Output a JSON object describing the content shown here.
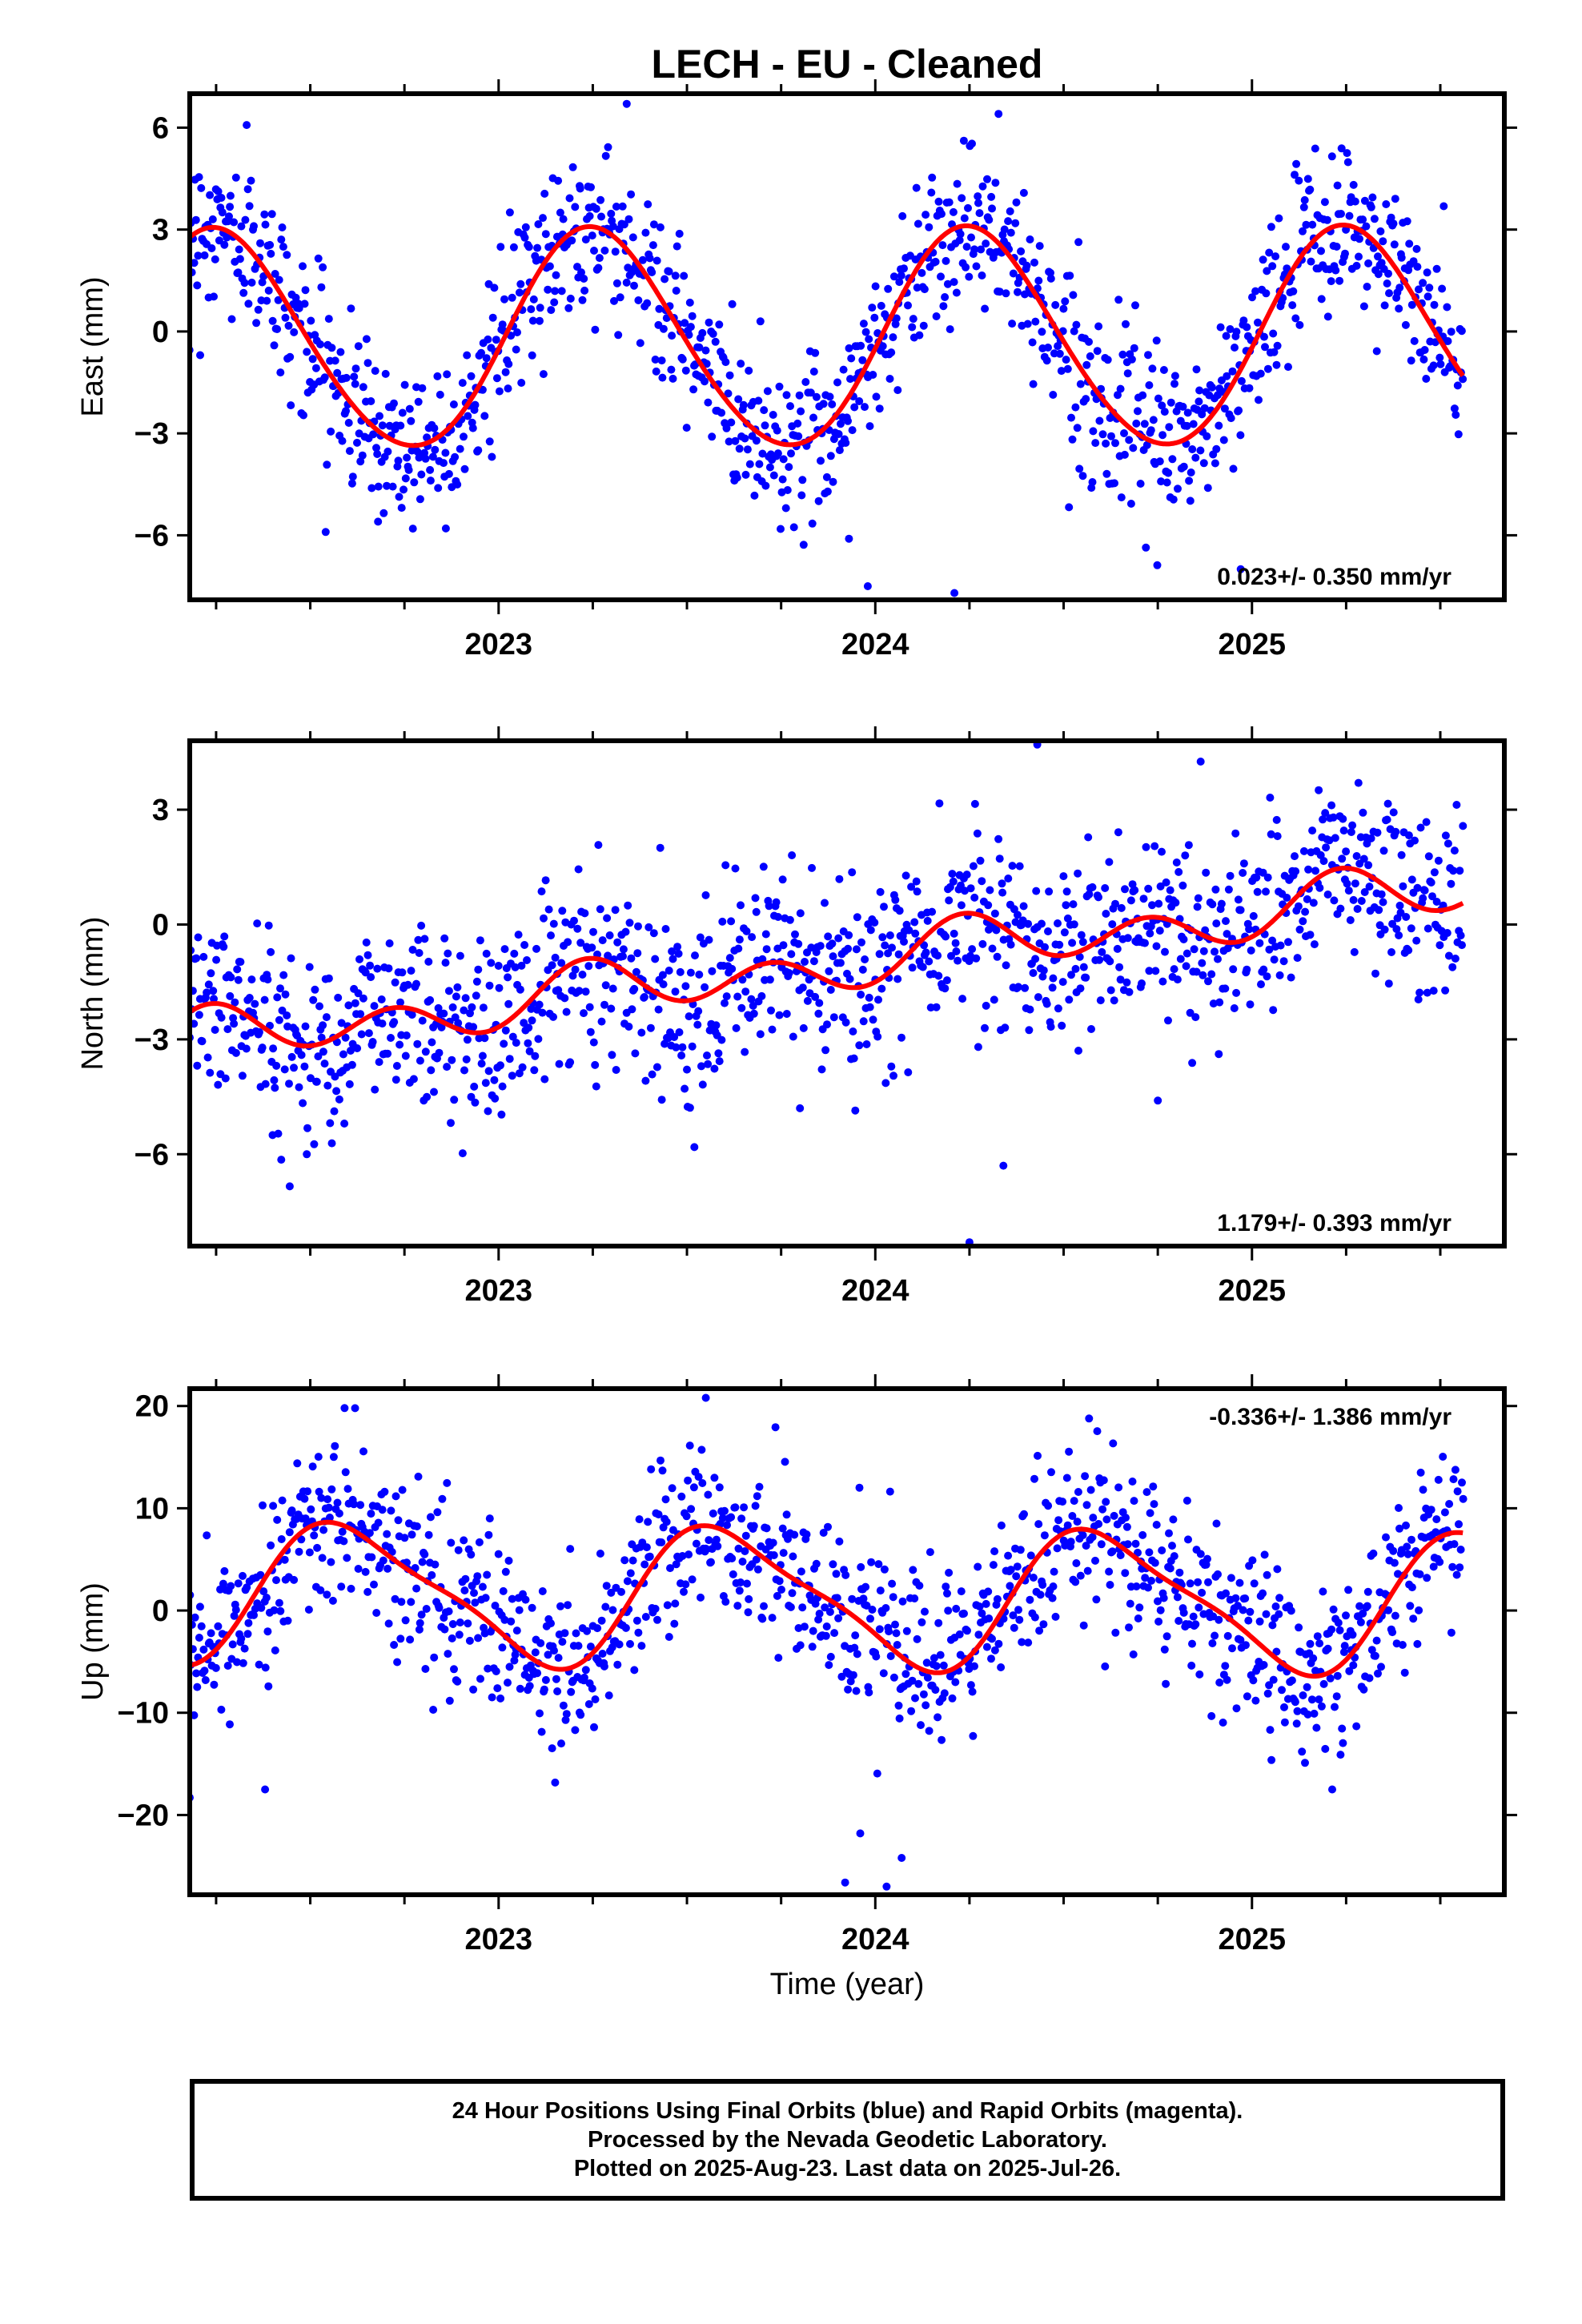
{
  "title": "LECH  - EU - Cleaned",
  "xlabel": "Time (year)",
  "footer": {
    "line1": "24 Hour Positions Using Final Orbits (blue) and Rapid Orbits (magenta).",
    "line2": "Processed by the Nevada Geodetic Laboratory.",
    "line3": "Plotted on 2025-Aug-23. Last data on 2025-Jul-26."
  },
  "colors": {
    "points": "#0000ff",
    "model": "#ff0000",
    "axes": "#000000"
  },
  "chart_data": [
    {
      "type": "scatter",
      "ylabel": "East (mm)",
      "rate_text": "0.023+/- 0.350 mm/yr",
      "rate_position": "bottom-right",
      "xlim": [
        2022.18,
        2025.67
      ],
      "ylim": [
        -7.9,
        7.0
      ],
      "yticks": [
        6,
        3,
        0,
        -3,
        -6
      ],
      "ytick_labels": [
        "6",
        "3",
        "0",
        "−3",
        "−6"
      ],
      "xticks": [
        2023,
        2024,
        2025
      ],
      "xtick_labels": [
        "2023",
        "2024",
        "2025"
      ],
      "model": {
        "offset": -0.25,
        "rate": 0.023,
        "annual_cos": -0.1,
        "annual_sin": 3.2,
        "semi_cos": -0.15,
        "semi_sin": 0.15,
        "noise_sd": 1.2
      },
      "outliers": [
        [
          2023.34,
          6.7
        ],
        [
          2023.98,
          -7.5
        ],
        [
          2024.21,
          -7.7
        ],
        [
          2024.97,
          -7.0
        ],
        [
          2022.68,
          -5.6
        ],
        [
          2022.86,
          -5.8
        ],
        [
          2023.93,
          -6.1
        ]
      ],
      "points_count": 1210
    },
    {
      "type": "scatter",
      "ylabel": "North (mm)",
      "rate_text": "1.179+/- 0.393 mm/yr",
      "rate_position": "bottom-right",
      "xlim": [
        2022.18,
        2025.67
      ],
      "ylim": [
        -8.4,
        4.8
      ],
      "yticks": [
        3,
        0,
        -3,
        -6
      ],
      "ytick_labels": [
        "3",
        "0",
        "−3",
        "−6"
      ],
      "xticks": [
        2023,
        2024,
        2025
      ],
      "xtick_labels": [
        "2023",
        "2024",
        "2025"
      ],
      "model": {
        "offset": -0.9,
        "rate": 1.179,
        "annual_cos": -0.05,
        "annual_sin": 0.35,
        "semi_cos": -0.55,
        "semi_sin": 0.15,
        "noise_sd": 1.2
      },
      "outliers": [
        [
          2024.34,
          -6.3
        ],
        [
          2024.25,
          -8.3
        ],
        [
          2022.4,
          -5.5
        ],
        [
          2024.43,
          4.7
        ],
        [
          2023.8,
          -4.8
        ],
        [
          2024.75,
          -4.6
        ]
      ],
      "points_count": 1210
    },
    {
      "type": "scatter",
      "ylabel": "Up (mm)",
      "rate_text": "-0.336+/- 1.386 mm/yr",
      "rate_position": "top-right",
      "xlim": [
        2022.18,
        2025.67
      ],
      "ylim": [
        -27.8,
        21.7
      ],
      "yticks": [
        20,
        10,
        0,
        -10,
        -20
      ],
      "ytick_labels": [
        "20",
        "10",
        "0",
        "−10",
        "−20"
      ],
      "xticks": [
        2023,
        2024,
        2025
      ],
      "xtick_labels": [
        "2023",
        "2024",
        "2025"
      ],
      "model": {
        "offset": 1.2,
        "rate": -0.336,
        "annual_cos": -5.0,
        "annual_sin": -4.1,
        "semi_cos": 1.5,
        "semi_sin": -0.5,
        "noise_sd": 4.2
      },
      "outliers": [
        [
          2023.55,
          20.8
        ],
        [
          2022.18,
          -18.3
        ],
        [
          2022.38,
          -17.5
        ],
        [
          2023.92,
          -26.6
        ],
        [
          2024.03,
          -27.0
        ],
        [
          2024.07,
          -24.2
        ],
        [
          2023.96,
          -21.8
        ]
      ],
      "points_count": 1210
    }
  ]
}
